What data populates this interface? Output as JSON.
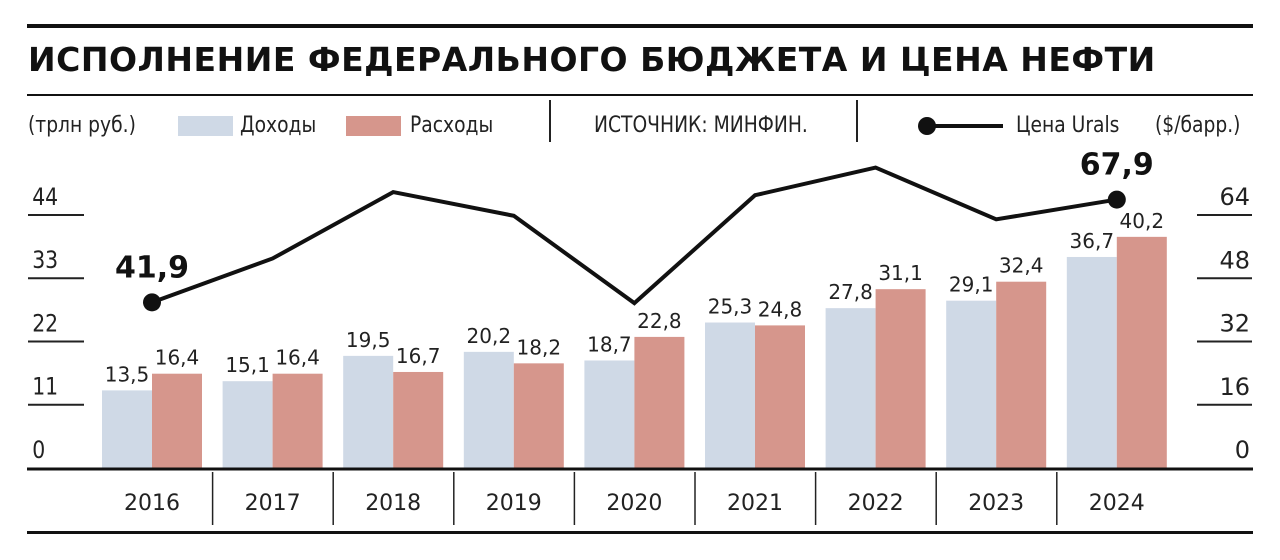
{
  "chart_data": {
    "type": "bar",
    "title": "ИСПОЛНЕНИЕ ФЕДЕРАЛЬНОГО БЮДЖЕТА И ЦЕНА НЕФТИ",
    "ylabel": "(трлн руб.)",
    "y2label": "($/барр.)",
    "source": "ИСТОЧНИК: МИНФИН.",
    "categories": [
      "2016",
      "2017",
      "2018",
      "2019",
      "2020",
      "2021",
      "2022",
      "2023",
      "2024"
    ],
    "series": [
      {
        "name": "Доходы",
        "type": "bar",
        "axis": "left",
        "color": "#cfd9e6",
        "values": [
          13.5,
          15.1,
          19.5,
          20.2,
          18.7,
          25.3,
          27.8,
          29.1,
          36.7
        ],
        "labels": [
          "13,5",
          "15,1",
          "19,5",
          "20,2",
          "18,7",
          "25,3",
          "27,8",
          "29,1",
          "36,7"
        ]
      },
      {
        "name": "Расходы",
        "type": "bar",
        "axis": "left",
        "color": "#d6968c",
        "values": [
          16.4,
          16.4,
          16.7,
          18.2,
          22.8,
          24.8,
          31.1,
          32.4,
          40.2
        ],
        "labels": [
          "16,4",
          "16,4",
          "16,7",
          "18,2",
          "22,8",
          "24,8",
          "31,1",
          "32,4",
          "40,2"
        ]
      },
      {
        "name": "Цена Urals",
        "type": "line",
        "axis": "right",
        "color": "#111111",
        "values": [
          41.9,
          53.0,
          69.8,
          63.8,
          41.7,
          69.0,
          76.0,
          62.9,
          67.9
        ],
        "point_labels": {
          "0": "41,9",
          "8": "67,9"
        }
      }
    ],
    "ylim": [
      0,
      44
    ],
    "yticks": [
      "0",
      "11",
      "22",
      "33",
      "44"
    ],
    "y2lim": [
      0,
      64
    ],
    "y2ticks": [
      "0",
      "16",
      "32",
      "48",
      "64"
    ]
  }
}
